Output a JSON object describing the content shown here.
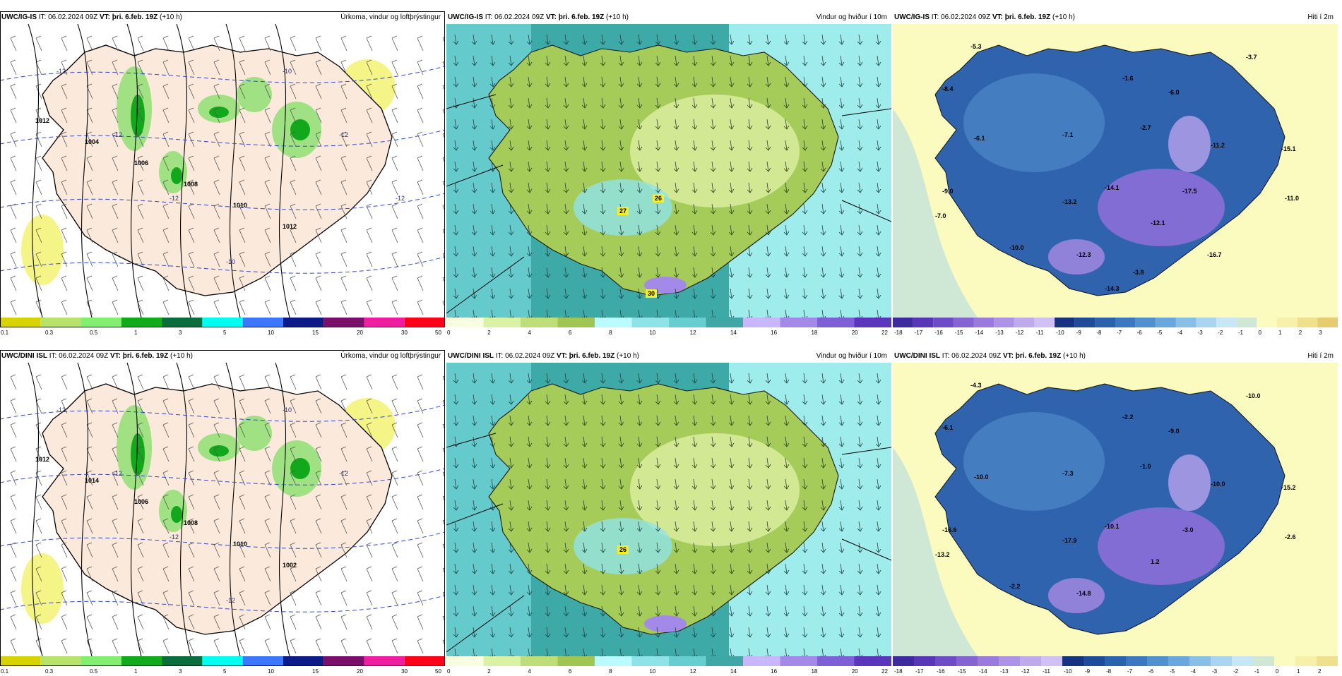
{
  "panels": [
    {
      "model": "UWC/IG-IS",
      "it_label": "IT:",
      "it": "06.02.2024 09Z",
      "vt_label": "VT:",
      "vt": "þri. 6.feb. 19Z",
      "lead": "(+10 h)",
      "field": "Úrkoma, vindur og loftþrýstingur",
      "type": "precip",
      "isobars": [
        "1012",
        "1004",
        "1006",
        "1008",
        "1010",
        "1012"
      ],
      "iso_temps": [
        "-12",
        "-12",
        "-12",
        "-10",
        "-10",
        "-12",
        "-12"
      ],
      "legend": [
        "0.1",
        "0.3",
        "0.5",
        "1",
        "3",
        "5",
        "10",
        "15",
        "20",
        "30",
        "50"
      ],
      "legend_colors": [
        "#d6d300",
        "#b7e36a",
        "#83ef71",
        "#11aa1b",
        "#0a6d3c",
        "#00fff0",
        "#3c78ff",
        "#0b1b87",
        "#7a0f6b",
        "#ef1da0",
        "#ff001a"
      ]
    },
    {
      "model": "UWC/IG-IS",
      "it_label": "IT:",
      "it": "06.02.2024 09Z",
      "vt_label": "VT:",
      "vt": "þri. 6.feb. 19Z",
      "lead": "(+10 h)",
      "field": "Vindur og hviður í 10m",
      "type": "wind",
      "gust_labels": [
        "27",
        "26",
        "30"
      ],
      "legend": [
        "0",
        "2",
        "4",
        "6",
        "8",
        "10",
        "12",
        "14",
        "16",
        "18",
        "20",
        "22"
      ],
      "legend_colors": [
        "#f7ffe0",
        "#d9f2a4",
        "#bede7a",
        "#9fc653",
        "#b9fbff",
        "#8ee3e9",
        "#66cdd0",
        "#3fa8a6",
        "#c8b6ff",
        "#a38ae9",
        "#7d60d6",
        "#5a36bd"
      ]
    },
    {
      "model": "UWC/IG-IS",
      "it_label": "IT:",
      "it": "06.02.2024 09Z",
      "vt_label": "VT:",
      "vt": "þri. 6.feb. 19Z",
      "lead": "(+10 h)",
      "field": "Hiti í 2m",
      "type": "temp",
      "temps": [
        "-5.3",
        "-3.7",
        "-8.4",
        "-1.6",
        "-6.0",
        "-6.1",
        "-7.1",
        "-2.7",
        "-11.2",
        "-15.1",
        "-9.0",
        "-14.1",
        "-13.2",
        "-17.5",
        "-11.0",
        "-7.0",
        "-12.1",
        "-10.0",
        "-12.3",
        "-16.7",
        "-3.8",
        "-14.3"
      ],
      "legend": [
        "-18",
        "-17",
        "-16",
        "-15",
        "-14",
        "-13",
        "-12",
        "-11",
        "-10",
        "-9",
        "-8",
        "-7",
        "-6",
        "-5",
        "-4",
        "-3",
        "-2",
        "-1",
        "0",
        "1",
        "2",
        "3"
      ],
      "legend_colors": [
        "#3d2a9e",
        "#5736b8",
        "#6f4cc7",
        "#8563d3",
        "#9a7add",
        "#ad92e6",
        "#c0aaee",
        "#d0c1f4",
        "#15337e",
        "#1e4c99",
        "#2b62ad",
        "#3b78bf",
        "#5190cf",
        "#6aa7dc",
        "#88bfe7",
        "#a9d5f0",
        "#c8e7f5",
        "#cfe8d6",
        "#fbfbc0",
        "#f6f0a8",
        "#efe18b",
        "#e5cd6f"
      ]
    },
    {
      "model": "UWC/DINI ISL",
      "it_label": "IT:",
      "it": "06.02.2024 09Z",
      "vt_label": "VT:",
      "vt": "þri. 6.feb. 19Z",
      "lead": "(+10 h)",
      "field": "Úrkoma, vindur og loftþrýstingur",
      "type": "precip",
      "isobars": [
        "1012",
        "1014",
        "1006",
        "1008",
        "1010",
        "1002"
      ],
      "iso_temps": [
        "-12",
        "-12",
        "-12",
        "-12",
        "-10",
        "-12"
      ],
      "legend": [
        "0.1",
        "0.3",
        "0.5",
        "1",
        "3",
        "5",
        "10",
        "15",
        "20",
        "30",
        "50"
      ],
      "legend_colors": [
        "#d6d300",
        "#b7e36a",
        "#83ef71",
        "#11aa1b",
        "#0a6d3c",
        "#00fff0",
        "#3c78ff",
        "#0b1b87",
        "#7a0f6b",
        "#ef1da0",
        "#ff001a"
      ]
    },
    {
      "model": "UWC/DINI ISL",
      "it_label": "IT:",
      "it": "06.02.2024 09Z",
      "vt_label": "VT:",
      "vt": "þri. 6.feb. 19Z",
      "lead": "(+10 h)",
      "field": "Vindur og hviður í 10m",
      "type": "wind",
      "gust_labels": [
        "26"
      ],
      "legend": [
        "0",
        "2",
        "4",
        "6",
        "8",
        "10",
        "12",
        "14",
        "16",
        "18",
        "20",
        "22"
      ],
      "legend_colors": [
        "#f7ffe0",
        "#d9f2a4",
        "#bede7a",
        "#9fc653",
        "#b9fbff",
        "#8ee3e9",
        "#66cdd0",
        "#3fa8a6",
        "#c8b6ff",
        "#a38ae9",
        "#7d60d6",
        "#5a36bd"
      ]
    },
    {
      "model": "UWC/DINI ISL",
      "it_label": "IT:",
      "it": "06.02.2024 09Z",
      "vt_label": "VT:",
      "vt": "þri. 6.feb. 19Z",
      "lead": "(+10 h)",
      "field": "Hiti í 2m",
      "type": "temp",
      "temps": [
        "-4.3",
        "-10.0",
        "-6.1",
        "-2.2",
        "-9.0",
        "-10.0",
        "-7.3",
        "-1.0",
        "-10.0",
        "-15.2",
        "-16.6",
        "-10.1",
        "-17.9",
        "-3.0",
        "-2.6",
        "-13.2",
        "1.2",
        "-2.2",
        "-14.8"
      ],
      "legend": [
        "-18",
        "-17",
        "-16",
        "-15",
        "-14",
        "-13",
        "-12",
        "-11",
        "-10",
        "-9",
        "-8",
        "-7",
        "-6",
        "-5",
        "-4",
        "-3",
        "-2",
        "-1",
        "0",
        "1",
        "2"
      ],
      "legend_colors": [
        "#3d2a9e",
        "#5736b8",
        "#6f4cc7",
        "#8563d3",
        "#9a7add",
        "#ad92e6",
        "#c0aaee",
        "#d0c1f4",
        "#15337e",
        "#1e4c99",
        "#2b62ad",
        "#3b78bf",
        "#5190cf",
        "#6aa7dc",
        "#88bfe7",
        "#a9d5f0",
        "#c8e7f5",
        "#cfe8d6",
        "#fbfbc0",
        "#f6f0a8",
        "#efe18b"
      ]
    }
  ]
}
